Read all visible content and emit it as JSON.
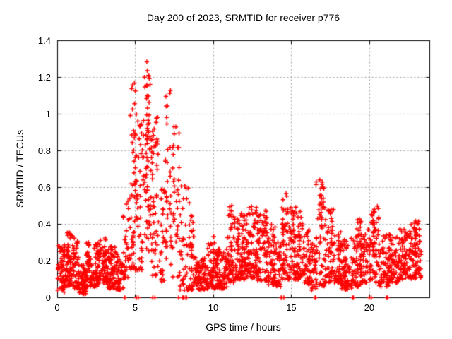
{
  "chart_data": {
    "type": "scatter",
    "title": "Day 200 of 2023, SRMTID for receiver p776",
    "xlabel": "GPS time / hours",
    "ylabel": "SRMTID / TECUs",
    "xlim": [
      0,
      23.85
    ],
    "ylim": [
      0,
      1.4
    ],
    "xticks": {
      "values": [
        0,
        5,
        10,
        15,
        20
      ],
      "labels": [
        "0",
        "5",
        "10",
        "15",
        "20"
      ]
    },
    "yticks": {
      "values": [
        0,
        0.2,
        0.4,
        0.6,
        0.8,
        1.0,
        1.2,
        1.4
      ],
      "labels": [
        "0",
        "0.2",
        "0.4",
        "0.6",
        "0.8",
        "1",
        "1.2",
        "1.4"
      ]
    },
    "grid": true,
    "legend": "none",
    "marker": "plus",
    "marker_color": "#ff0000",
    "grid_color": "#9c9c9c",
    "axis_color": "#000000",
    "background": "#ffffff",
    "max_point": {
      "x": 5.72,
      "y": 1.285
    },
    "notable_features": [
      "quiet wavy band 0.05-0.35 TECU from 0-4 h",
      "large TID burst 4.5-6.5 h peaking at 1.285 TECU near 5.7 h",
      "secondary sparse columns up to 1.13 TECU near 7.0-7.5 h",
      "moderate activity band 0.1-0.5 TECU from 11-16 h",
      "spike to 0.66 TECU near 16.9 h",
      "zero-value samples plotted on the time axis (e.g. 4.3, 5.1, 6.1, 7.8-8.3, 14.4, 16.5, 19.0, 20.0, 21.1 h)"
    ],
    "point_distribution": {
      "bands": [
        [
          0.0,
          0.45,
          55,
          0.03,
          0.3,
          1.5
        ],
        [
          0.45,
          0.95,
          65,
          0.06,
          0.36,
          1.5
        ],
        [
          0.95,
          1.35,
          50,
          0.05,
          0.33,
          1.6
        ],
        [
          1.35,
          1.85,
          60,
          0.02,
          0.18,
          1.3
        ],
        [
          1.85,
          2.65,
          95,
          0.06,
          0.31,
          1.5
        ],
        [
          2.65,
          3.15,
          60,
          0.08,
          0.33,
          1.5
        ],
        [
          3.15,
          3.75,
          72,
          0.05,
          0.28,
          1.5
        ],
        [
          3.75,
          4.2,
          48,
          0.04,
          0.24,
          1.4
        ],
        [
          4.2,
          4.65,
          34,
          0.1,
          0.56,
          1.8
        ],
        [
          4.65,
          5.0,
          40,
          0.15,
          1.18,
          1.7
        ],
        [
          5.0,
          5.45,
          36,
          0.15,
          1.02,
          1.6
        ],
        [
          5.45,
          5.95,
          48,
          0.25,
          1.29,
          1.4
        ],
        [
          5.95,
          6.45,
          40,
          0.12,
          1.0,
          1.7
        ],
        [
          6.45,
          6.85,
          26,
          0.08,
          0.62,
          1.6
        ],
        [
          6.85,
          7.25,
          24,
          0.2,
          1.14,
          1.5
        ],
        [
          7.25,
          7.8,
          34,
          0.1,
          0.95,
          1.9
        ],
        [
          7.8,
          8.45,
          44,
          0.04,
          0.62,
          1.7
        ],
        [
          8.45,
          8.8,
          30,
          0.04,
          0.45,
          1.7
        ],
        [
          8.8,
          9.6,
          90,
          0.04,
          0.22,
          1.4
        ],
        [
          9.6,
          10.1,
          55,
          0.05,
          0.3,
          1.6
        ],
        [
          10.1,
          10.85,
          80,
          0.05,
          0.27,
          1.5
        ],
        [
          10.85,
          11.35,
          55,
          0.08,
          0.5,
          1.7
        ],
        [
          11.35,
          12.1,
          95,
          0.1,
          0.46,
          1.5
        ],
        [
          12.1,
          12.75,
          80,
          0.1,
          0.5,
          1.5
        ],
        [
          12.75,
          13.45,
          85,
          0.09,
          0.48,
          1.5
        ],
        [
          13.45,
          13.95,
          60,
          0.07,
          0.4,
          1.5
        ],
        [
          13.95,
          14.3,
          34,
          0.06,
          0.32,
          1.5
        ],
        [
          14.3,
          14.75,
          42,
          0.1,
          0.57,
          1.6
        ],
        [
          14.75,
          15.3,
          58,
          0.1,
          0.5,
          1.6
        ],
        [
          15.3,
          15.75,
          48,
          0.1,
          0.48,
          1.6
        ],
        [
          15.75,
          16.2,
          45,
          0.07,
          0.38,
          1.5
        ],
        [
          16.2,
          16.55,
          33,
          0.04,
          0.3,
          1.5
        ],
        [
          16.55,
          17.1,
          45,
          0.06,
          0.66,
          1.8
        ],
        [
          17.1,
          17.7,
          58,
          0.08,
          0.5,
          1.7
        ],
        [
          17.7,
          18.2,
          50,
          0.08,
          0.38,
          1.5
        ],
        [
          18.2,
          18.9,
          72,
          0.04,
          0.33,
          1.5
        ],
        [
          18.9,
          19.45,
          58,
          0.06,
          0.44,
          1.6
        ],
        [
          19.45,
          20.05,
          60,
          0.08,
          0.38,
          1.5
        ],
        [
          20.05,
          20.6,
          58,
          0.08,
          0.5,
          1.7
        ],
        [
          20.6,
          21.25,
          63,
          0.06,
          0.35,
          1.5
        ],
        [
          21.25,
          21.85,
          60,
          0.08,
          0.36,
          1.5
        ],
        [
          21.85,
          22.55,
          78,
          0.1,
          0.38,
          1.5
        ],
        [
          22.55,
          23.3,
          85,
          0.1,
          0.42,
          1.4
        ]
      ],
      "spikes": [
        [
          4.95,
          10,
          0.5,
          1.17
        ],
        [
          5.28,
          8,
          0.4,
          0.95
        ],
        [
          5.72,
          14,
          0.6,
          1.285
        ],
        [
          5.85,
          8,
          0.9,
          1.22
        ],
        [
          6.1,
          8,
          0.4,
          0.98
        ],
        [
          6.35,
          8,
          0.45,
          0.98
        ],
        [
          7.0,
          10,
          0.3,
          1.13
        ],
        [
          7.45,
          8,
          0.3,
          0.95
        ],
        [
          8.6,
          6,
          0.15,
          0.44
        ],
        [
          10.0,
          6,
          0.15,
          0.36
        ],
        [
          11.15,
          7,
          0.25,
          0.52
        ],
        [
          14.45,
          9,
          0.2,
          0.56
        ],
        [
          15.15,
          6,
          0.25,
          0.5
        ],
        [
          16.85,
          9,
          0.3,
          0.655
        ],
        [
          16.95,
          7,
          0.35,
          0.62
        ],
        [
          17.5,
          6,
          0.2,
          0.5
        ],
        [
          19.2,
          6,
          0.15,
          0.43
        ],
        [
          20.25,
          6,
          0.2,
          0.5
        ],
        [
          22.9,
          5,
          0.2,
          0.42
        ]
      ],
      "zero_times": [
        4.31,
        5.05,
        5.17,
        6.1,
        6.24,
        7.76,
        8.02,
        8.06,
        8.1,
        8.22,
        8.26,
        14.33,
        14.37,
        14.5,
        16.5,
        16.54,
        18.92,
        18.96,
        19.97,
        20.1,
        21.1,
        21.14
      ]
    }
  }
}
